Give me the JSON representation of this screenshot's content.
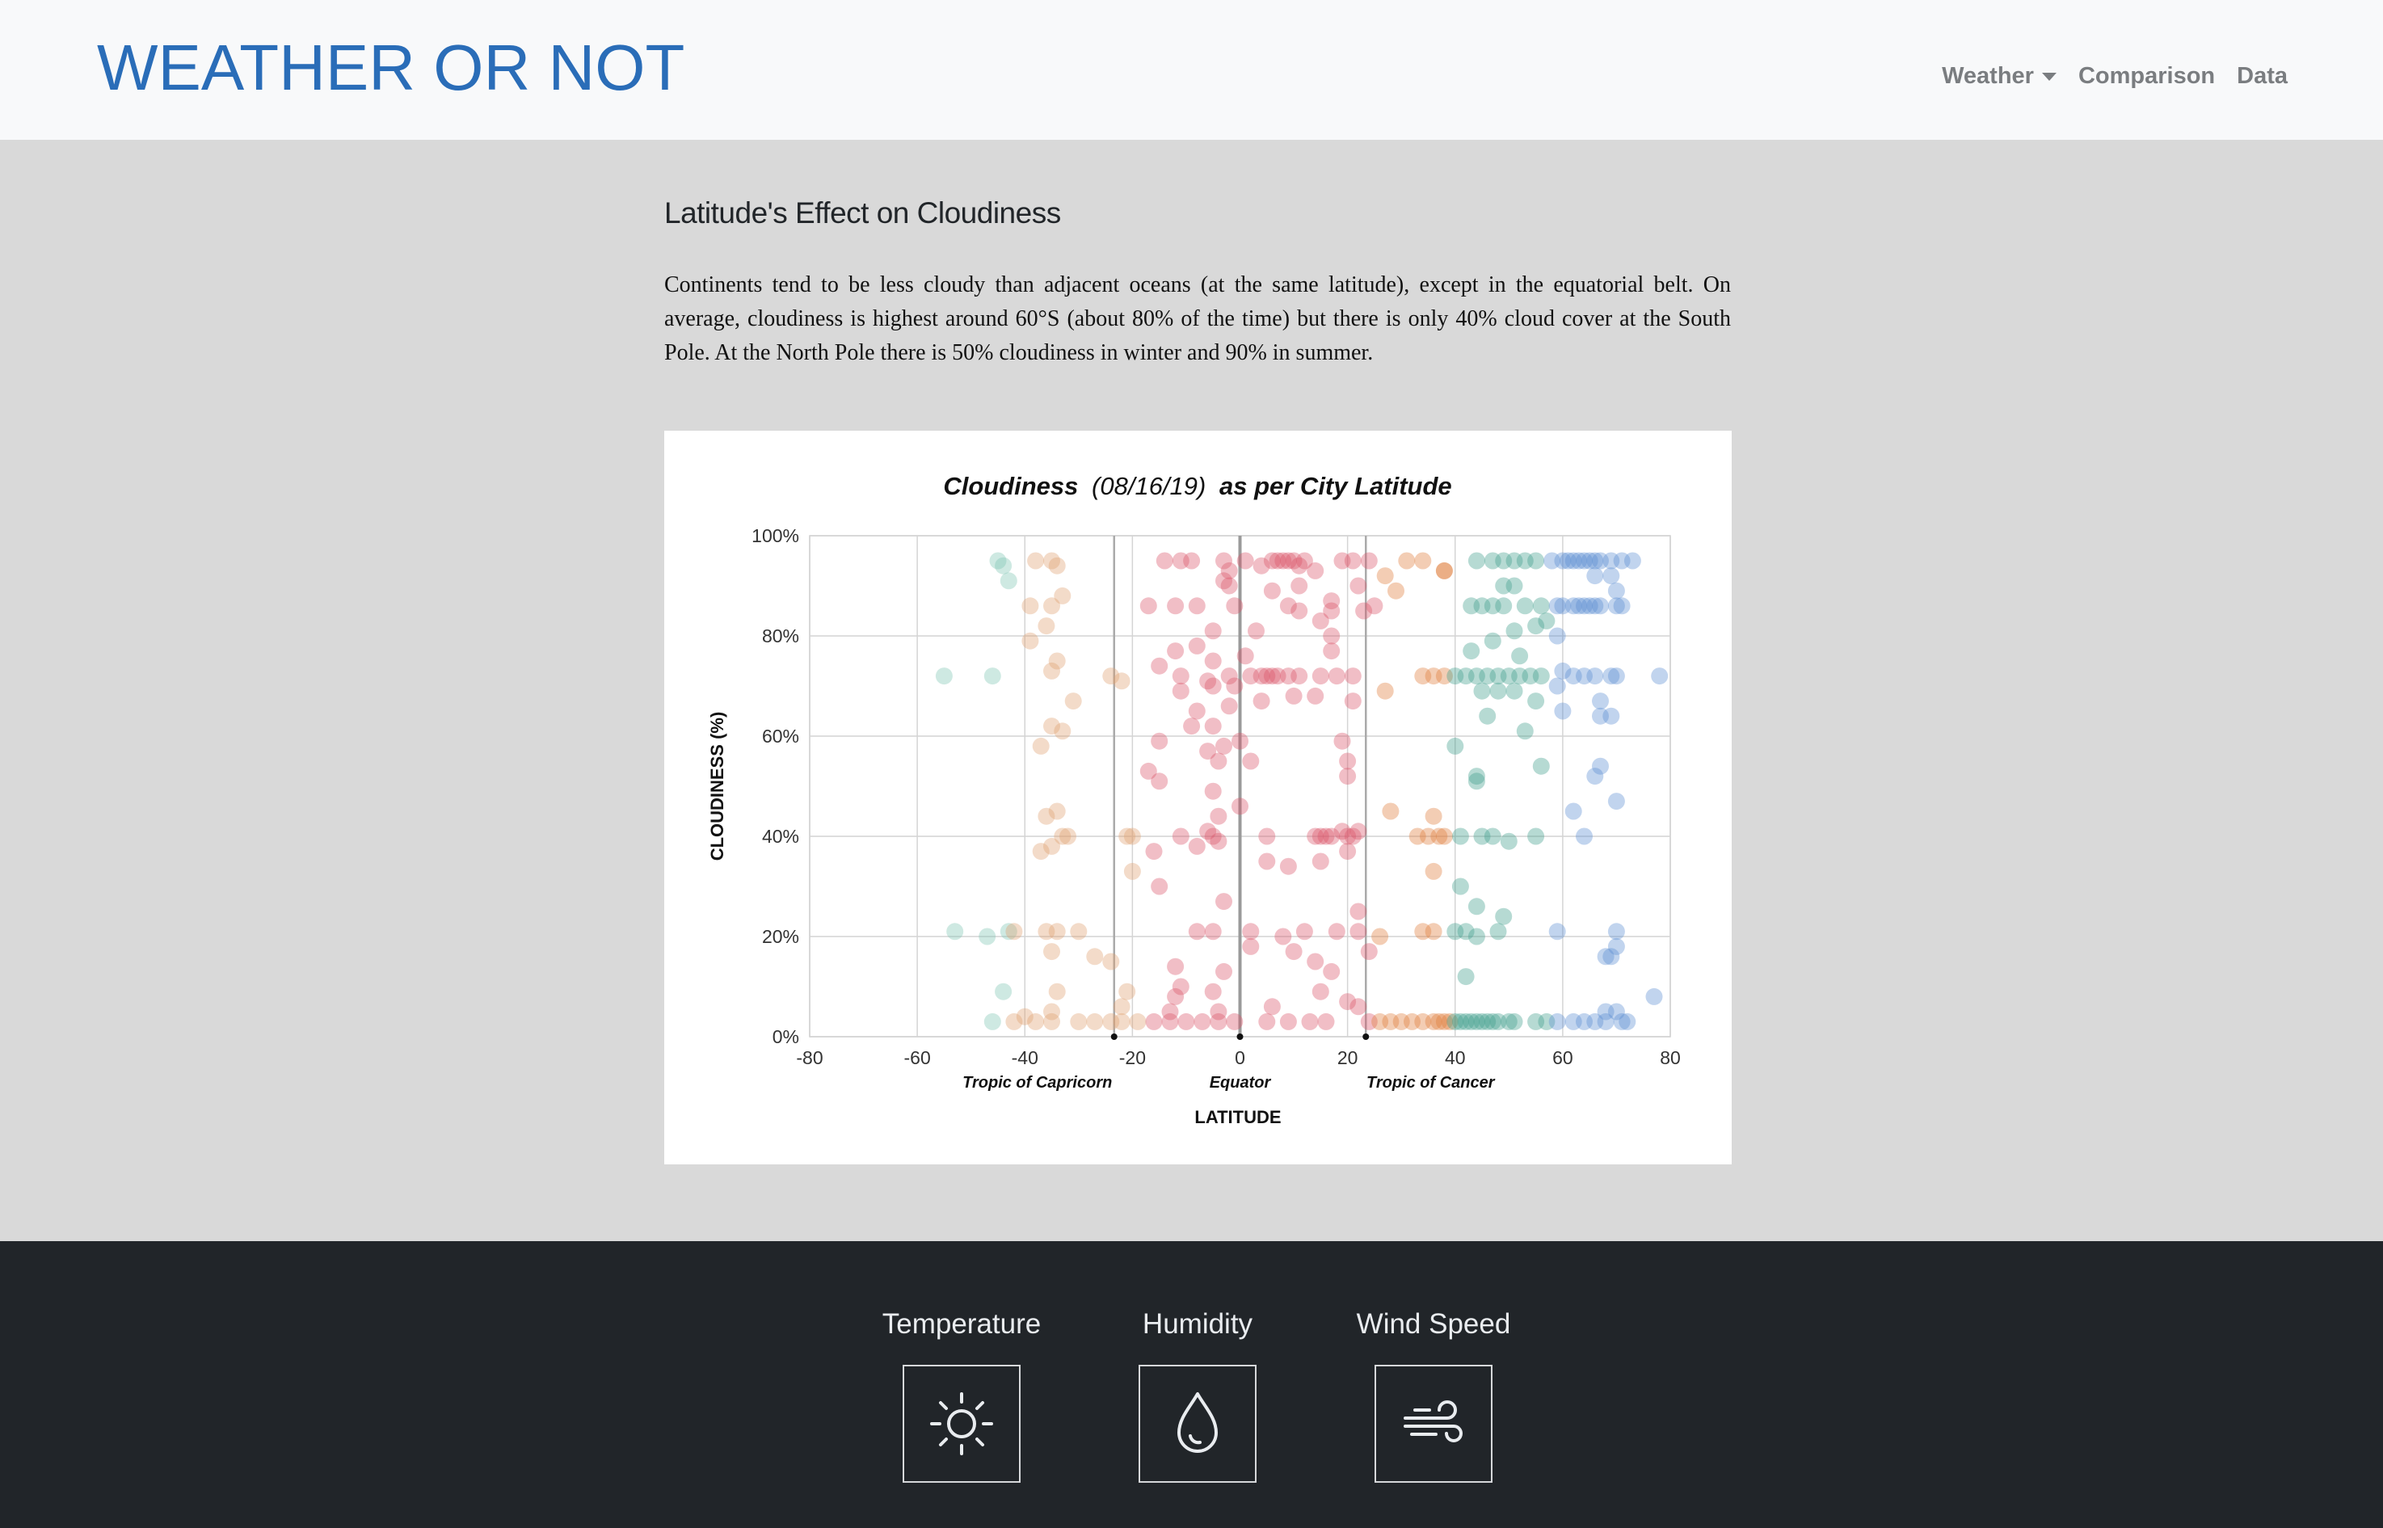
{
  "brand": "WEATHER OR NOT",
  "nav": {
    "weather": "Weather",
    "comparison": "Comparison",
    "data": "Data"
  },
  "article": {
    "title": "Latitude's Effect on Cloudiness",
    "body": "Continents tend to be less cloudy than adjacent oceans (at the same latitude), except in the equatorial belt. On average, cloudiness is highest around 60°S (about 80% of the time) but there is only 40% cloud cover at the South Pole. At the North Pole there is 50% cloudiness in winter and 90% in summer."
  },
  "chart_data": {
    "type": "scatter",
    "title_bold_1": "Cloudiness",
    "title_italic": "(08/16/19)",
    "title_bold_2": "as per City Latitude",
    "xlabel": "LATITUDE",
    "ylabel": "CLOUDINESS (%)",
    "xlim": [
      -80,
      80
    ],
    "ylim": [
      0,
      100
    ],
    "x_ticks": [
      "-80",
      "-60",
      "-40",
      "-20",
      "0",
      "20",
      "40",
      "60",
      "80"
    ],
    "y_ticks": [
      "0%",
      "20%",
      "40%",
      "60%",
      "80%",
      "100%"
    ],
    "grid": true,
    "reference_lines": [
      {
        "label": "Tropic of Capricorn",
        "x": -23.4
      },
      {
        "label": "Equator",
        "x": 0
      },
      {
        "label": "Tropic of Cancer",
        "x": 23.4
      }
    ],
    "colors": {
      "south_far": "#7fc4b4",
      "south_mid": "#e0a070",
      "tropics": "#d9546a",
      "north_mid": "#e07b39",
      "north_subpolar": "#3f9f8c",
      "north_far": "#5b8fd1"
    },
    "points": [
      [
        -45,
        95
      ],
      [
        -44,
        94
      ],
      [
        -38,
        95
      ],
      [
        -35,
        95
      ],
      [
        -34,
        94
      ],
      [
        -43,
        91
      ],
      [
        -35,
        86
      ],
      [
        -33,
        88
      ],
      [
        -39,
        86
      ],
      [
        -36,
        82
      ],
      [
        -39,
        79
      ],
      [
        -55,
        72
      ],
      [
        -46,
        72
      ],
      [
        -35,
        73
      ],
      [
        -34,
        75
      ],
      [
        -24,
        72
      ],
      [
        -22,
        71
      ],
      [
        -31,
        67
      ],
      [
        -35,
        62
      ],
      [
        -37,
        58
      ],
      [
        -33,
        61
      ],
      [
        -36,
        44
      ],
      [
        -34,
        45
      ],
      [
        -33,
        40
      ],
      [
        -35,
        38
      ],
      [
        -37,
        37
      ],
      [
        -32,
        40
      ],
      [
        -21,
        40
      ],
      [
        -20,
        40
      ],
      [
        -20,
        33
      ],
      [
        -53,
        21
      ],
      [
        -47,
        20
      ],
      [
        -43,
        21
      ],
      [
        -42,
        21
      ],
      [
        -36,
        21
      ],
      [
        -34,
        21
      ],
      [
        -30,
        21
      ],
      [
        -35,
        17
      ],
      [
        -27,
        16
      ],
      [
        -24,
        15
      ],
      [
        -44,
        9
      ],
      [
        -34,
        9
      ],
      [
        -21,
        9
      ],
      [
        -22,
        6
      ],
      [
        -35,
        5
      ],
      [
        -40,
        4
      ],
      [
        -46,
        3
      ],
      [
        -42,
        3
      ],
      [
        -38,
        3
      ],
      [
        -35,
        3
      ],
      [
        -30,
        3
      ],
      [
        -27,
        3
      ],
      [
        -24,
        3
      ],
      [
        -22,
        3
      ],
      [
        -19,
        3
      ],
      [
        -16,
        3
      ],
      [
        -13,
        3
      ],
      [
        -10,
        3
      ],
      [
        -7,
        3
      ],
      [
        -4,
        3
      ],
      [
        -1,
        3
      ],
      [
        -14,
        95
      ],
      [
        -11,
        95
      ],
      [
        -9,
        95
      ],
      [
        -3,
        95
      ],
      [
        -2,
        93
      ],
      [
        1,
        95
      ],
      [
        4,
        94
      ],
      [
        6,
        95
      ],
      [
        7,
        95
      ],
      [
        8,
        95
      ],
      [
        9,
        95
      ],
      [
        10,
        95
      ],
      [
        11,
        94
      ],
      [
        12,
        95
      ],
      [
        14,
        93
      ],
      [
        19,
        95
      ],
      [
        21,
        95
      ],
      [
        24,
        95
      ],
      [
        27,
        92
      ],
      [
        31,
        95
      ],
      [
        34,
        95
      ],
      [
        38,
        93
      ],
      [
        -3,
        91
      ],
      [
        -2,
        90
      ],
      [
        6,
        89
      ],
      [
        11,
        90
      ],
      [
        17,
        87
      ],
      [
        22,
        90
      ],
      [
        29,
        89
      ],
      [
        -17,
        86
      ],
      [
        -12,
        86
      ],
      [
        -8,
        86
      ],
      [
        -1,
        86
      ],
      [
        9,
        86
      ],
      [
        11,
        85
      ],
      [
        17,
        85
      ],
      [
        23,
        85
      ],
      [
        25,
        86
      ],
      [
        -5,
        81
      ],
      [
        3,
        81
      ],
      [
        15,
        83
      ],
      [
        17,
        80
      ],
      [
        -12,
        77
      ],
      [
        -8,
        78
      ],
      [
        -5,
        75
      ],
      [
        1,
        76
      ],
      [
        17,
        77
      ],
      [
        -15,
        74
      ],
      [
        -11,
        72
      ],
      [
        -6,
        71
      ],
      [
        -2,
        72
      ],
      [
        2,
        72
      ],
      [
        4,
        72
      ],
      [
        5,
        72
      ],
      [
        6,
        72
      ],
      [
        7,
        72
      ],
      [
        9,
        72
      ],
      [
        11,
        72
      ],
      [
        15,
        72
      ],
      [
        18,
        72
      ],
      [
        21,
        72
      ],
      [
        -11,
        69
      ],
      [
        -5,
        70
      ],
      [
        -1,
        70
      ],
      [
        4,
        67
      ],
      [
        10,
        68
      ],
      [
        14,
        68
      ],
      [
        21,
        67
      ],
      [
        27,
        69
      ],
      [
        -8,
        65
      ],
      [
        -2,
        66
      ],
      [
        -9,
        62
      ],
      [
        -5,
        62
      ],
      [
        0,
        59
      ],
      [
        -15,
        59
      ],
      [
        -3,
        58
      ],
      [
        -6,
        57
      ],
      [
        -4,
        55
      ],
      [
        2,
        55
      ],
      [
        -17,
        53
      ],
      [
        -15,
        51
      ],
      [
        20,
        52
      ],
      [
        20,
        55
      ],
      [
        19,
        59
      ],
      [
        -5,
        49
      ],
      [
        0,
        46
      ],
      [
        -4,
        44
      ],
      [
        -11,
        40
      ],
      [
        -6,
        41
      ],
      [
        -5,
        40
      ],
      [
        5,
        40
      ],
      [
        14,
        40
      ],
      [
        15,
        40
      ],
      [
        16,
        40
      ],
      [
        17,
        40
      ],
      [
        19,
        41
      ],
      [
        20,
        40
      ],
      [
        21,
        40
      ],
      [
        22,
        41
      ],
      [
        28,
        45
      ],
      [
        -16,
        37
      ],
      [
        -8,
        38
      ],
      [
        -4,
        39
      ],
      [
        5,
        35
      ],
      [
        9,
        34
      ],
      [
        15,
        35
      ],
      [
        20,
        37
      ],
      [
        -15,
        30
      ],
      [
        -3,
        27
      ],
      [
        22,
        25
      ],
      [
        -5,
        21
      ],
      [
        -8,
        21
      ],
      [
        2,
        21
      ],
      [
        8,
        20
      ],
      [
        12,
        21
      ],
      [
        18,
        21
      ],
      [
        22,
        21
      ],
      [
        26,
        20
      ],
      [
        2,
        18
      ],
      [
        10,
        17
      ],
      [
        14,
        15
      ],
      [
        24,
        17
      ],
      [
        -12,
        14
      ],
      [
        17,
        13
      ],
      [
        -3,
        13
      ],
      [
        -11,
        10
      ],
      [
        -5,
        9
      ],
      [
        -12,
        8
      ],
      [
        15,
        9
      ],
      [
        20,
        7
      ],
      [
        6,
        6
      ],
      [
        -13,
        5
      ],
      [
        -4,
        5
      ],
      [
        22,
        6
      ],
      [
        24,
        3
      ],
      [
        26,
        3
      ],
      [
        28,
        3
      ],
      [
        30,
        3
      ],
      [
        32,
        3
      ],
      [
        5,
        3
      ],
      [
        9,
        3
      ],
      [
        13,
        3
      ],
      [
        16,
        3
      ],
      [
        34,
        21
      ],
      [
        36,
        21
      ],
      [
        40,
        21
      ],
      [
        42,
        21
      ],
      [
        44,
        20
      ],
      [
        48,
        21
      ],
      [
        49,
        24
      ],
      [
        33,
        40
      ],
      [
        35,
        40
      ],
      [
        37,
        40
      ],
      [
        38,
        40
      ],
      [
        41,
        40
      ],
      [
        45,
        40
      ],
      [
        47,
        40
      ],
      [
        50,
        39
      ],
      [
        55,
        40
      ],
      [
        36,
        44
      ],
      [
        36,
        33
      ],
      [
        41,
        30
      ],
      [
        44,
        26
      ],
      [
        42,
        12
      ],
      [
        38,
        93
      ],
      [
        44,
        95
      ],
      [
        47,
        95
      ],
      [
        49,
        95
      ],
      [
        51,
        95
      ],
      [
        53,
        95
      ],
      [
        55,
        95
      ],
      [
        49,
        90
      ],
      [
        51,
        90
      ],
      [
        43,
        86
      ],
      [
        45,
        86
      ],
      [
        47,
        86
      ],
      [
        49,
        86
      ],
      [
        53,
        86
      ],
      [
        56,
        86
      ],
      [
        59,
        86
      ],
      [
        57,
        83
      ],
      [
        55,
        82
      ],
      [
        51,
        81
      ],
      [
        47,
        79
      ],
      [
        43,
        77
      ],
      [
        52,
        76
      ],
      [
        34,
        72
      ],
      [
        36,
        72
      ],
      [
        38,
        72
      ],
      [
        40,
        72
      ],
      [
        42,
        72
      ],
      [
        44,
        72
      ],
      [
        46,
        72
      ],
      [
        48,
        72
      ],
      [
        50,
        72
      ],
      [
        52,
        72
      ],
      [
        54,
        72
      ],
      [
        56,
        72
      ],
      [
        45,
        69
      ],
      [
        48,
        69
      ],
      [
        51,
        69
      ],
      [
        55,
        67
      ],
      [
        46,
        64
      ],
      [
        53,
        61
      ],
      [
        40,
        58
      ],
      [
        44,
        52
      ],
      [
        44,
        51
      ],
      [
        56,
        54
      ],
      [
        34,
        3
      ],
      [
        36,
        3
      ],
      [
        37,
        3
      ],
      [
        38,
        3
      ],
      [
        39,
        3
      ],
      [
        40,
        3
      ],
      [
        41,
        3
      ],
      [
        42,
        3
      ],
      [
        43,
        3
      ],
      [
        44,
        3
      ],
      [
        45,
        3
      ],
      [
        46,
        3
      ],
      [
        47,
        3
      ],
      [
        48,
        3
      ],
      [
        50,
        3
      ],
      [
        51,
        3
      ],
      [
        55,
        3
      ],
      [
        57,
        3
      ],
      [
        58,
        95
      ],
      [
        60,
        95
      ],
      [
        61,
        95
      ],
      [
        62,
        95
      ],
      [
        63,
        95
      ],
      [
        64,
        95
      ],
      [
        65,
        95
      ],
      [
        66,
        95
      ],
      [
        67,
        95
      ],
      [
        69,
        95
      ],
      [
        71,
        95
      ],
      [
        73,
        95
      ],
      [
        66,
        92
      ],
      [
        69,
        92
      ],
      [
        70,
        89
      ],
      [
        60,
        86
      ],
      [
        62,
        86
      ],
      [
        63,
        86
      ],
      [
        64,
        86
      ],
      [
        65,
        86
      ],
      [
        66,
        86
      ],
      [
        67,
        86
      ],
      [
        70,
        86
      ],
      [
        71,
        86
      ],
      [
        59,
        80
      ],
      [
        60,
        73
      ],
      [
        62,
        72
      ],
      [
        64,
        72
      ],
      [
        66,
        72
      ],
      [
        69,
        72
      ],
      [
        70,
        72
      ],
      [
        78,
        72
      ],
      [
        59,
        70
      ],
      [
        67,
        67
      ],
      [
        60,
        65
      ],
      [
        67,
        64
      ],
      [
        69,
        64
      ],
      [
        67,
        54
      ],
      [
        66,
        52
      ],
      [
        70,
        47
      ],
      [
        62,
        45
      ],
      [
        64,
        40
      ],
      [
        59,
        21
      ],
      [
        70,
        21
      ],
      [
        70,
        18
      ],
      [
        69,
        16
      ],
      [
        68,
        16
      ],
      [
        77,
        8
      ],
      [
        68,
        5
      ],
      [
        70,
        5
      ],
      [
        59,
        3
      ],
      [
        62,
        3
      ],
      [
        64,
        3
      ],
      [
        66,
        3
      ],
      [
        68,
        3
      ],
      [
        71,
        3
      ],
      [
        72,
        3
      ]
    ]
  },
  "footer": {
    "temperature": "Temperature",
    "humidity": "Humidity",
    "wind_speed": "Wind Speed"
  }
}
